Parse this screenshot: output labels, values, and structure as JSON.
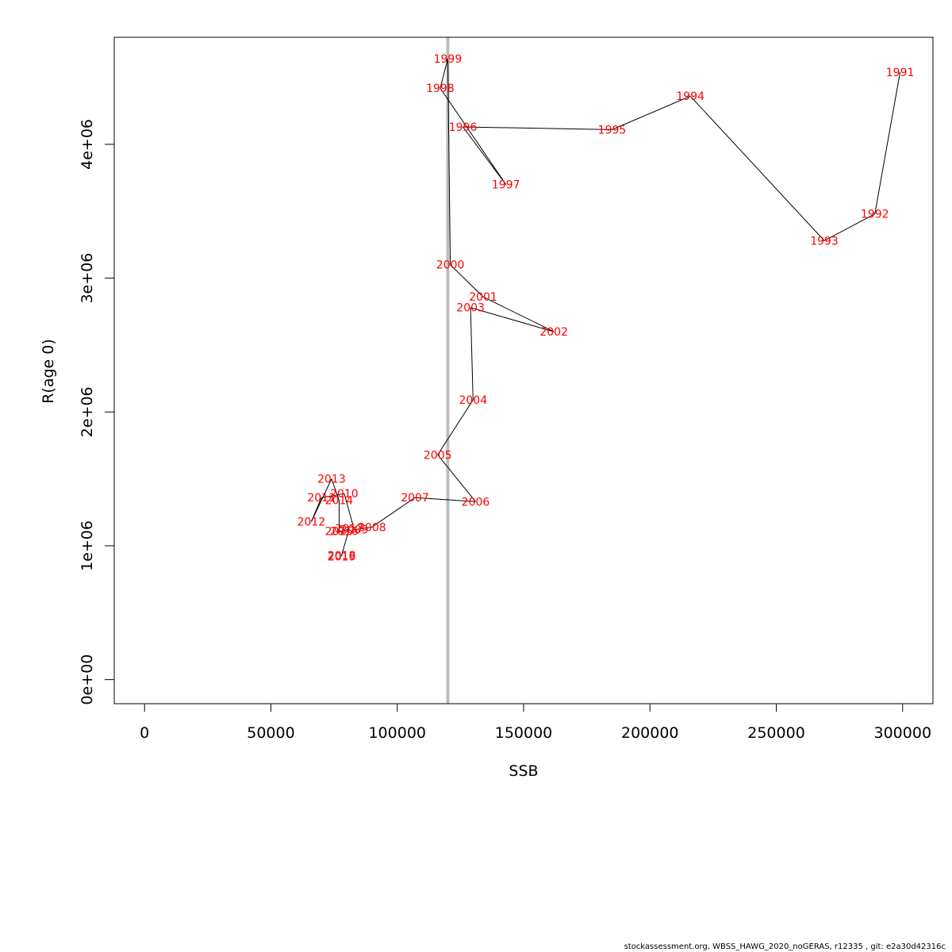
{
  "chart_data": {
    "type": "line",
    "xlabel": "SSB",
    "ylabel": "R(age 0)",
    "xlim": [
      -12000,
      312000
    ],
    "ylim": [
      -180000,
      4800000
    ],
    "x_ticks": [
      0,
      50000,
      100000,
      150000,
      200000,
      250000,
      300000
    ],
    "x_tick_labels": [
      "0",
      "50000",
      "100000",
      "150000",
      "200000",
      "250000",
      "300000"
    ],
    "y_ticks": [
      0,
      1000000,
      2000000,
      3000000,
      4000000
    ],
    "y_tick_labels": [
      "0e+00",
      "1e+06",
      "2e+06",
      "3e+06",
      "4e+06"
    ],
    "reference_line": {
      "x": 120000,
      "color": "#bdbdbd"
    },
    "line_color": "#000000",
    "label_color": "#ff0000",
    "points": [
      {
        "label": "1991",
        "x": 299000,
        "y": 4540000
      },
      {
        "label": "1992",
        "x": 289000,
        "y": 3480000
      },
      {
        "label": "1993",
        "x": 269000,
        "y": 3280000
      },
      {
        "label": "1994",
        "x": 216000,
        "y": 4360000
      },
      {
        "label": "1995",
        "x": 185000,
        "y": 4110000
      },
      {
        "label": "1996",
        "x": 126000,
        "y": 4130000
      },
      {
        "label": "1997",
        "x": 143000,
        "y": 3700000
      },
      {
        "label": "1998",
        "x": 117000,
        "y": 4420000
      },
      {
        "label": "1999",
        "x": 120000,
        "y": 4640000
      },
      {
        "label": "2000",
        "x": 121000,
        "y": 3100000
      },
      {
        "label": "2001",
        "x": 134000,
        "y": 2860000
      },
      {
        "label": "2002",
        "x": 162000,
        "y": 2600000
      },
      {
        "label": "2003",
        "x": 129000,
        "y": 2780000
      },
      {
        "label": "2004",
        "x": 130000,
        "y": 2090000
      },
      {
        "label": "2005",
        "x": 116000,
        "y": 1680000
      },
      {
        "label": "2006",
        "x": 131000,
        "y": 1330000
      },
      {
        "label": "2007",
        "x": 107000,
        "y": 1360000
      },
      {
        "label": "2008",
        "x": 90000,
        "y": 1140000
      },
      {
        "label": "2009",
        "x": 83000,
        "y": 1120000
      },
      {
        "label": "2010",
        "x": 79000,
        "y": 1390000
      },
      {
        "label": "2011",
        "x": 70000,
        "y": 1360000
      },
      {
        "label": "2012",
        "x": 66000,
        "y": 1180000
      },
      {
        "label": "2013",
        "x": 74000,
        "y": 1500000
      },
      {
        "label": "2014",
        "x": 77000,
        "y": 1340000
      },
      {
        "label": "2015",
        "x": 77000,
        "y": 1110000
      },
      {
        "label": "2016",
        "x": 79000,
        "y": 1110000
      },
      {
        "label": "2017",
        "x": 81000,
        "y": 1130000
      },
      {
        "label": "2018",
        "x": 78000,
        "y": 930000
      },
      {
        "label": "2019",
        "x": 78000,
        "y": 920000
      }
    ]
  },
  "footer": {
    "text": "stockassessment.org, WBSS_HAWG_2020_noGERAS, r12335 , git: e2a30d42316c"
  }
}
